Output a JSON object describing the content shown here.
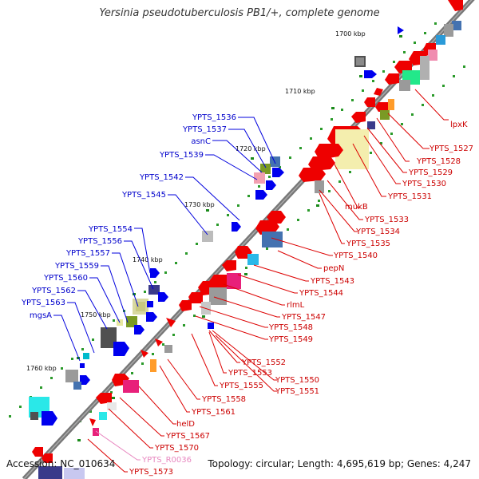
{
  "title": "Yersinia pseudotuberculosis PB1/+, complete genome",
  "footer": {
    "accession": "Accession: NC_010634",
    "stats": "Topology: circular; Length: 4,695,619 bp; Genes: 4,247"
  },
  "colors": {
    "backbone": "#6e6e6e",
    "plus_label": "#0000cc",
    "minus_label": "#cc0000",
    "rna_label": "#e888c0",
    "cds_forward": "#ff0000",
    "cds_reverse": "#0000ee",
    "tick": "#229922"
  },
  "scale_ticks": [
    "1700 kbp",
    "1710 kbp",
    "1720 kbp",
    "1730 kbp",
    "1740 kbp",
    "1750 kbp",
    "1760 kbp"
  ],
  "upper_labels": [
    "YPTS_1536",
    "YPTS_1537",
    "asnC",
    "YPTS_1539",
    "YPTS_1542",
    "YPTS_1545",
    "YPTS_1554",
    "YPTS_1556",
    "YPTS_1557",
    "YPTS_1559",
    "YPTS_1560",
    "YPTS_1562",
    "YPTS_1563",
    "mgsA"
  ],
  "lower_labels": [
    "lpxK",
    "YPTS_1527",
    "YPTS_1528",
    "YPTS_1529",
    "YPTS_1530",
    "YPTS_1531",
    "mukB",
    "YPTS_1533",
    "YPTS_1534",
    "YPTS_1535",
    "YPTS_1540",
    "pepN",
    "YPTS_1543",
    "YPTS_1544",
    "rlmL",
    "YPTS_1547",
    "YPTS_1548",
    "YPTS_1549",
    "YPTS_1552",
    "YPTS_1553",
    "YPTS_1550",
    "YPTS_1555",
    "YPTS_1551",
    "YPTS_1558",
    "YPTS_1561",
    "helD",
    "YPTS_1567",
    "YPTS_1570",
    "YPTS_R0036",
    "YPTS_1573"
  ]
}
